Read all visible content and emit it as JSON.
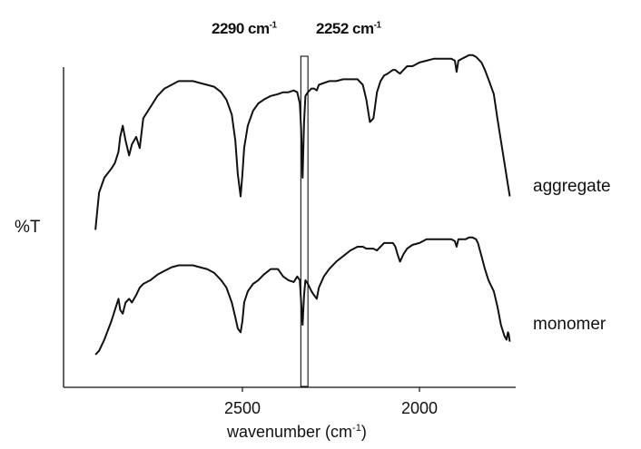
{
  "chart_data": {
    "type": "line",
    "xlabel": "wavenumber (cm",
    "xlabel_sup": "-1",
    "xlabel_close": ")",
    "ylabel": "%T",
    "x_reversed": true,
    "xlim": [
      2920,
      1740
    ],
    "x_ticks": [
      2500,
      2000
    ],
    "annotations": [
      {
        "value": "2290 cm",
        "sup": "-1"
      },
      {
        "value": "2252 cm",
        "sup": "-1"
      }
    ],
    "highlight_band": [
      2335,
      2315
    ],
    "series": [
      {
        "name": "aggregate",
        "x": [
          2915,
          2905,
          2890,
          2870,
          2860,
          2850,
          2845,
          2838,
          2830,
          2820,
          2812,
          2800,
          2790,
          2780,
          2760,
          2740,
          2720,
          2700,
          2680,
          2660,
          2640,
          2620,
          2600,
          2580,
          2560,
          2545,
          2530,
          2520,
          2513,
          2505,
          2500,
          2495,
          2485,
          2470,
          2455,
          2440,
          2420,
          2400,
          2385,
          2370,
          2355,
          2345,
          2338,
          2334,
          2330,
          2326,
          2322,
          2315,
          2305,
          2298,
          2290,
          2284,
          2270,
          2255,
          2235,
          2215,
          2195,
          2175,
          2160,
          2150,
          2140,
          2130,
          2120,
          2110,
          2100,
          2090,
          2075,
          2068,
          2062,
          2055,
          2045,
          2035,
          2020,
          2000,
          1980,
          1960,
          1940,
          1920,
          1910,
          1900,
          1895,
          1890,
          1880,
          1870,
          1860,
          1850,
          1840,
          1835,
          1825,
          1815,
          1805,
          1790,
          1780,
          1770,
          1760,
          1750,
          1745
        ],
        "y": [
          12,
          32,
          40,
          45,
          48,
          54,
          62,
          68,
          60,
          52,
          58,
          62,
          56,
          72,
          78,
          84,
          88,
          90,
          92,
          92,
          92,
          91,
          90,
          89,
          86,
          82,
          74,
          60,
          42,
          30,
          42,
          56,
          68,
          76,
          80,
          82,
          84,
          85,
          86,
          86,
          87,
          86,
          80,
          66,
          40,
          70,
          84,
          86,
          88,
          88,
          87,
          90,
          91,
          92,
          92,
          93,
          93,
          93,
          90,
          82,
          70,
          72,
          86,
          92,
          95,
          96,
          98,
          98,
          97,
          96,
          98,
          100,
          100,
          102,
          103,
          104,
          104,
          104,
          104,
          103,
          97,
          103,
          104,
          105,
          106,
          106,
          105,
          104,
          102,
          98,
          93,
          85,
          72,
          60,
          48,
          36,
          30
        ],
        "color": "#111111"
      },
      {
        "name": "monomer",
        "x": [
          2915,
          2905,
          2890,
          2870,
          2860,
          2850,
          2845,
          2838,
          2830,
          2820,
          2812,
          2800,
          2790,
          2780,
          2760,
          2740,
          2720,
          2700,
          2680,
          2660,
          2640,
          2620,
          2600,
          2580,
          2560,
          2545,
          2530,
          2520,
          2513,
          2505,
          2500,
          2495,
          2485,
          2470,
          2455,
          2440,
          2420,
          2400,
          2385,
          2370,
          2355,
          2345,
          2338,
          2334,
          2330,
          2326,
          2322,
          2315,
          2305,
          2298,
          2290,
          2284,
          2270,
          2255,
          2235,
          2215,
          2195,
          2175,
          2160,
          2150,
          2140,
          2130,
          2120,
          2110,
          2100,
          2090,
          2075,
          2068,
          2062,
          2055,
          2045,
          2035,
          2020,
          2000,
          1980,
          1960,
          1940,
          1920,
          1910,
          1900,
          1895,
          1890,
          1880,
          1870,
          1860,
          1850,
          1840,
          1835,
          1825,
          1815,
          1805,
          1790,
          1780,
          1770,
          1760,
          1754,
          1750,
          1748,
          1745
        ],
        "y": [
          2,
          4,
          10,
          20,
          26,
          32,
          26,
          24,
          30,
          32,
          30,
          34,
          38,
          40,
          42,
          45,
          47,
          49,
          50,
          50,
          50,
          49,
          48,
          46,
          42,
          38,
          30,
          22,
          16,
          14,
          20,
          30,
          36,
          40,
          42,
          45,
          48,
          48,
          44,
          42,
          41,
          44,
          42,
          30,
          18,
          34,
          42,
          40,
          36,
          34,
          32,
          38,
          44,
          48,
          52,
          55,
          58,
          60,
          60,
          59,
          59,
          59,
          58,
          60,
          62,
          62,
          62,
          60,
          56,
          52,
          56,
          59,
          61,
          62,
          64,
          64,
          64,
          64,
          64,
          63,
          60,
          64,
          64,
          64,
          65,
          65,
          64,
          62,
          55,
          48,
          42,
          36,
          28,
          18,
          12,
          10,
          14,
          13,
          9
        ],
        "color": "#111111"
      }
    ]
  }
}
